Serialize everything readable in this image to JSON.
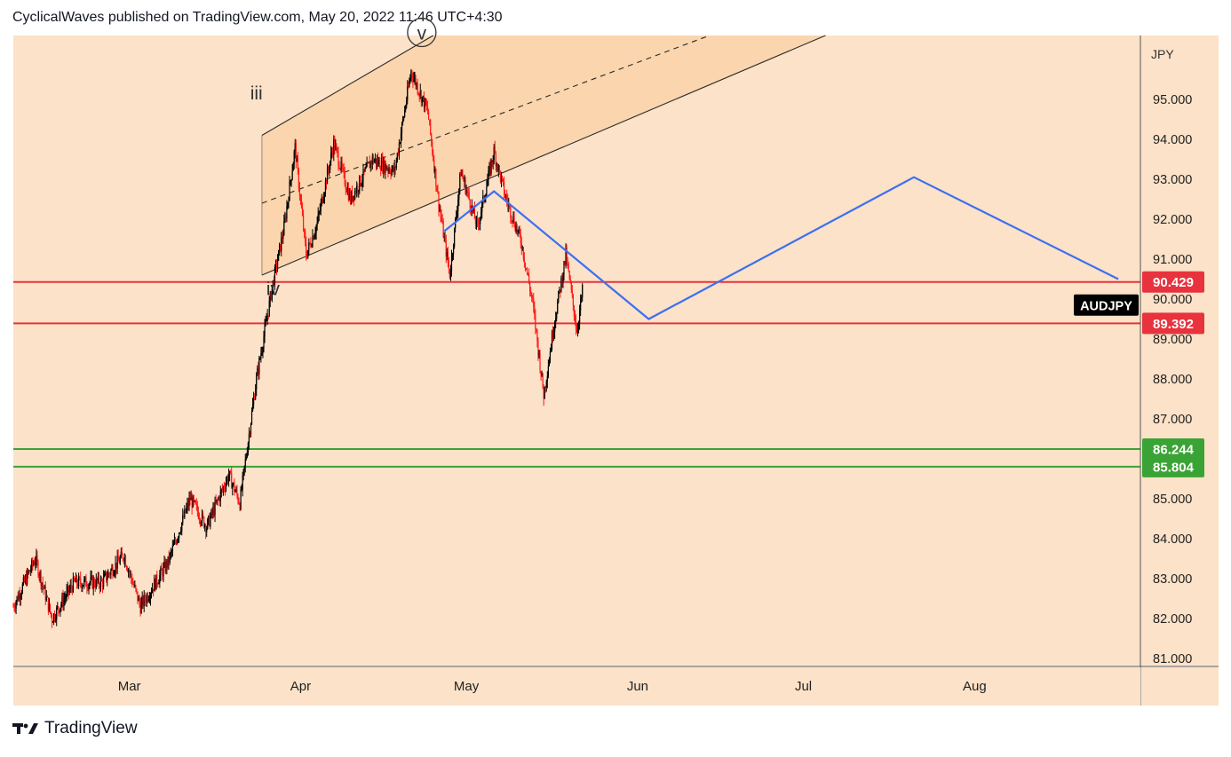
{
  "header": {
    "publisher_line": "CyclicalWaves published on TradingView.com, May 20, 2022 11:46 UTC+4:30"
  },
  "footer": {
    "brand": "TradingView",
    "logo_icon": "tradingview-logo-icon"
  },
  "colors": {
    "chart_bg": "#fbe2c8",
    "channel_fill": "#fad2a8",
    "up_candle": "#000000",
    "down_candle": "#ff1a1a",
    "resistance_line": "#e8323d",
    "support_line": "#3aa335",
    "projection_line": "#3d6ff0",
    "symbol_badge": "#000000"
  },
  "chart_data": {
    "type": "candlestick",
    "symbol": "AUDJPY",
    "currency_label": "JPY",
    "x_ticks": [
      "Mar",
      "Apr",
      "May",
      "Jun",
      "Jul",
      "Aug"
    ],
    "y_ticks": [
      "81.000",
      "82.000",
      "83.000",
      "84.000",
      "85.000",
      "86.000",
      "87.000",
      "88.000",
      "89.000",
      "90.000",
      "91.000",
      "92.000",
      "93.000",
      "94.000",
      "95.000"
    ],
    "ylim": [
      80.8,
      96.6
    ],
    "xlim": [
      "2022-02-08",
      "2022-08-31"
    ],
    "horizontal_levels": [
      {
        "value": 90.429,
        "label": "90.429",
        "color": "#e8323d"
      },
      {
        "value": 89.392,
        "label": "89.392",
        "color": "#e8323d"
      },
      {
        "value": 86.244,
        "label": "86.244",
        "color": "#3aa335"
      },
      {
        "value": 85.804,
        "label": "85.804",
        "color": "#3aa335"
      }
    ],
    "last_price_badge": "AUDJPY",
    "wave_labels": [
      {
        "text": "iii",
        "date": "2022-03-24",
        "price": 95.0
      },
      {
        "text": "iv",
        "date": "2022-03-27",
        "price": 90.1
      },
      {
        "text": "v",
        "date": "2022-04-21",
        "price": 96.5
      }
    ],
    "channel": {
      "lower_start": {
        "date": "2022-03-25",
        "price": 90.6
      },
      "lower_end": {
        "date": "2022-07-05",
        "price": 96.6
      },
      "upper_start": {
        "date": "2022-03-25",
        "price": 94.1
      },
      "upper_end": {
        "date": "2022-04-25",
        "price": 96.6
      },
      "mid_start": {
        "date": "2022-03-25",
        "price": 92.4
      },
      "mid_end": {
        "date": "2022-06-14",
        "price": 96.6
      }
    },
    "projection_path": [
      {
        "date": "2022-04-27",
        "price": 91.7
      },
      {
        "date": "2022-05-06",
        "price": 92.7
      },
      {
        "date": "2022-06-03",
        "price": 89.5
      },
      {
        "date": "2022-07-21",
        "price": 93.05
      },
      {
        "date": "2022-08-27",
        "price": 90.5
      }
    ],
    "price_path": [
      {
        "date": "2022-02-08",
        "price": 82.3
      },
      {
        "date": "2022-02-12",
        "price": 83.5
      },
      {
        "date": "2022-02-15",
        "price": 82.0
      },
      {
        "date": "2022-02-19",
        "price": 82.9
      },
      {
        "date": "2022-02-24",
        "price": 82.9
      },
      {
        "date": "2022-02-28",
        "price": 83.6
      },
      {
        "date": "2022-03-03",
        "price": 82.3
      },
      {
        "date": "2022-03-08",
        "price": 83.4
      },
      {
        "date": "2022-03-12",
        "price": 85.0
      },
      {
        "date": "2022-03-15",
        "price": 84.3
      },
      {
        "date": "2022-03-19",
        "price": 85.6
      },
      {
        "date": "2022-03-21",
        "price": 84.9
      },
      {
        "date": "2022-03-24",
        "price": 88.0
      },
      {
        "date": "2022-03-27",
        "price": 90.4
      },
      {
        "date": "2022-03-29",
        "price": 91.8
      },
      {
        "date": "2022-03-31",
        "price": 93.8
      },
      {
        "date": "2022-04-02",
        "price": 91.1
      },
      {
        "date": "2022-04-04",
        "price": 91.9
      },
      {
        "date": "2022-04-07",
        "price": 93.9
      },
      {
        "date": "2022-04-10",
        "price": 92.5
      },
      {
        "date": "2022-04-14",
        "price": 93.5
      },
      {
        "date": "2022-04-18",
        "price": 93.2
      },
      {
        "date": "2022-04-21",
        "price": 95.7
      },
      {
        "date": "2022-04-24",
        "price": 94.7
      },
      {
        "date": "2022-04-26",
        "price": 92.4
      },
      {
        "date": "2022-04-28",
        "price": 90.6
      },
      {
        "date": "2022-04-30",
        "price": 93.2
      },
      {
        "date": "2022-05-03",
        "price": 91.8
      },
      {
        "date": "2022-05-06",
        "price": 93.7
      },
      {
        "date": "2022-05-08",
        "price": 92.6
      },
      {
        "date": "2022-05-11",
        "price": 91.4
      },
      {
        "date": "2022-05-13",
        "price": 89.9
      },
      {
        "date": "2022-05-15",
        "price": 87.6
      },
      {
        "date": "2022-05-17",
        "price": 89.5
      },
      {
        "date": "2022-05-19",
        "price": 91.1
      },
      {
        "date": "2022-05-21",
        "price": 89.2
      },
      {
        "date": "2022-05-22",
        "price": 90.2
      }
    ]
  }
}
